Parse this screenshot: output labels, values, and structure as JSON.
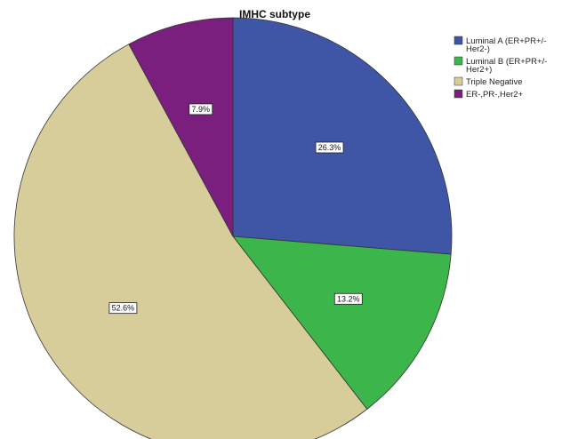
{
  "chart_data": {
    "type": "pie",
    "title": "IMHC subtype",
    "slices": [
      {
        "name": "Luminal A (ER+PR+/-Her2-)",
        "value": 26.3,
        "label": "26.3%",
        "color": "#3f55a5",
        "legend_lines": [
          "Luminal A (ER+PR+/-",
          "Her2-)"
        ]
      },
      {
        "name": "Luminal B (ER+PR+/-Her2+)",
        "value": 13.2,
        "label": "13.2%",
        "color": "#3cb54a",
        "legend_lines": [
          "Luminal B (ER+PR+/-",
          "Her2+)"
        ]
      },
      {
        "name": "Triple Negative",
        "value": 52.6,
        "label": "52.6%",
        "color": "#d6cd9b",
        "legend_lines": [
          "Triple Negative"
        ]
      },
      {
        "name": "ER-,PR-,Her2+",
        "value": 7.9,
        "label": "7.9%",
        "color": "#7a1f7e",
        "legend_lines": [
          "ER-,PR-,Her2+"
        ]
      }
    ],
    "start_angle_deg": 0,
    "direction": "clockwise",
    "legend_position": "top-right"
  }
}
